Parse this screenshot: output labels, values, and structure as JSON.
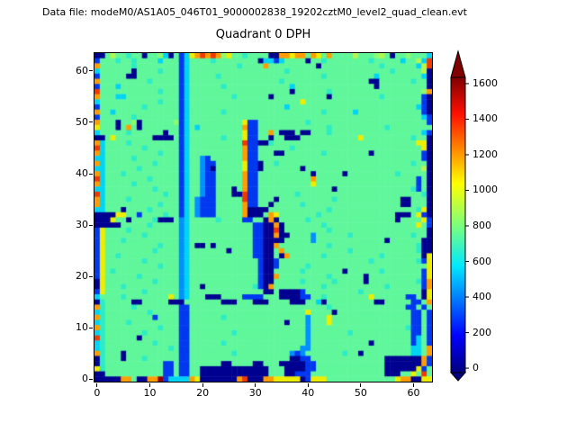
{
  "header": {
    "data_file_label": "Data file: modeM0/AS1A05_046T01_9000002838_19202cztM0_level2_quad_clean.evt"
  },
  "chart_data": {
    "type": "heatmap",
    "title": "Quadrant 0 DPH",
    "grid_size": 64,
    "axis_range": [
      -0.5,
      63.5
    ],
    "x_ticks": [
      0,
      10,
      20,
      30,
      40,
      50,
      60
    ],
    "y_ticks": [
      0,
      10,
      20,
      30,
      40,
      50,
      60
    ],
    "colorbar": {
      "ticks": [
        0,
        200,
        400,
        600,
        800,
        1000,
        1200,
        1400,
        1600
      ],
      "vmin": -25,
      "vmax": 1635,
      "extend": "both",
      "colormap": "jet",
      "gradient_stops": [
        {
          "offset": 0.0,
          "color": "#000080"
        },
        {
          "offset": 0.125,
          "color": "#0000ff"
        },
        {
          "offset": 0.36,
          "color": "#00e8ff"
        },
        {
          "offset": 0.5,
          "color": "#7dff7a"
        },
        {
          "offset": 0.64,
          "color": "#ffff00"
        },
        {
          "offset": 0.875,
          "color": "#ff1000"
        },
        {
          "offset": 1.0,
          "color": "#800000"
        }
      ]
    },
    "palette": {
      "n": {
        "value": 20,
        "color": "#000090"
      },
      "b": {
        "value": 270,
        "color": "#0038f0"
      },
      "B": {
        "value": 430,
        "color": "#0090ff"
      },
      "c": {
        "value": 560,
        "color": "#00d4f5"
      },
      "t": {
        "value": 630,
        "color": "#2cecc6"
      },
      "g": {
        "value": 710,
        "color": "#60f79b"
      },
      "G": {
        "value": 790,
        "color": "#8bfb70"
      },
      "y": {
        "value": 870,
        "color": "#b4f64d"
      },
      "Y": {
        "value": 1010,
        "color": "#eded00"
      },
      "o": {
        "value": 1260,
        "color": "#ff9d00"
      },
      "r": {
        "value": 1500,
        "color": "#f13800"
      },
      "R": {
        "value": 1690,
        "color": "#8f0000"
      }
    },
    "rows": [
      "nngyggtggnggGcngbcYororoGYggtggggnnooYoogoYgoggggygggGygnggGgggc",
      "bgggtggtggggcgggbcggggtggggggggnccbcggggnggtggggggggtgggggcggycr",
      "oggggggtggggggggbcgggggggggtggggogggggggggngggggggggggtgggggdcyr",
      "cggggggnggggtgggbcggggggggggggggggggtgggggggggggggggggggtgggggyn",
      "bgggggnnggggggggbcgggggtgggggggggggggggggggtgggggggggcggggggggcn",
      "ogggggggggtgggggbcgggggggggggggggggtggggggggggggggggnnggggggtggn",
      "bgggcgggggggggggbcggggggtggggggggggggcgggggggggggggggngggggggggn",
      "rgggggggggggtgggbcgggggggggggggggggggnggggggtggggggggggggggggdGo",
      "ogggccggggggggggbcggggggggtggggggnggggggggggngggggggggtgggggggbn",
      "cgggggggggggtgggbcgggggggggggggggggggggYggggggggggggggggggggggbn",
      "bggggggggtggggggbcggggggggggggggggggcggggggggggggggggggggggggcbn",
      "oggcggggggggggggbcggggggtggggggggggggggggggtgggggcggggggggggggbn",
      "bggggggtggggggggbcggggggggggggggggggggggggggggggggggggggggggggcb",
      "ogggnggGnggggggGbcggggggggggYbbgggggggggtggggggggggggggggggggggb",
      "Ygggngogngggggggbcgcggggggggobbgggggggggggggtggggggggggtgggggggg",
      "cgggggtggggggnggbcggggggggggYbbggognnngnngggtgggggggggggggggggcb",
      "nngYgggggggnnnngbcggggggtgggYbbggnggnnngggggggggggYgggggggggtggn",
      "ocggggtgggggggggbcggggggggggrbbnntgggggggggggggggggggggggggggYYn",
      "rcgggggggtggggggbcggggggggggobbggggggtggggggggggggggggggggggggYn",
      "ocggggggggggtgggbcggggggggggobbgggnngggggggtggggggggngggggggggbn",
      "ccgggggtggggggggbcggBbggggggobbgggggggggggggggggggggggggggggggbn",
      "ocgggggggggtggggbcggBbbgggggYbbnggtgggggggggggggggggggggggggtggn",
      "ccggggggtgggggggbcggBbngggggYbbngggggggnggggggggggggggggggggggyn",
      "ocgggtggggggggggbcggBbbgggggobbggggggggggngggggngggggggggtgggggn",
      "rcggggggggtgggggbcggBbbgggggobbggggggggggogggggggggggggggggggbgn",
      "ocgggggtggggggggbcggBbbgggggobbggggggggggYgggggggggggggggggggbgn",
      "ccgggggggggtggggbcggBbbgggngobbggggggggggggggnggggggggggggggtbgn",
      "rcgggggggggggtggbcggBbbgggnnrbbgggggggtgggggggggggggggggggggggtn",
      "ocggggtgggggggggbcgBbbbgggggrbbgggnggggggggggtggggggggggggnngggn",
      "ocggggggggggtgggbcgBbbbgggggobbggngggggtggggggggggggggggggnngggn",
      "ccgggnggggtgggggbcgBbbbgggggonnnngggggggggggtggggggggggggggggtYn",
      "nnnnYYggbggggtggbcgBbbbgggggonnngoYgggggggtggggggggggggggnnngYbn",
      "nnnYggnggggtnnngBcgggggtggggbbggnongggggtggggggggggggggggngggdYb",
      "nnnnngggggtgggggBcggggggggggggbbnnongggggggtggggggggggggggggdYgb",
      "bYggggtgggggggggBcggggggggggggbbnnrnggggggggtggggggggggggggggggn",
      "bYgggggggtggggggBcggggggggggggbbnnonnggggBggggggtgggggggggggtggn",
      "bYgggtggggggggggBcggggggggggggbbnnnngggggBggggggggggggdnggggggnn",
      "bYggggggggggtgggBcgnngngggggggbbnnogggggggggtggggggggggggggggtnn",
      "bYgggggggggtggggBcgggggggnggggbbnngoggggggggggggtggggggggggggtnn",
      "bYggtgggggggggggBcggggggggggggbbnngnoggggggtggggggggggtgggggggnY",
      "bYgggggggtggggggBcgggggggggggggbnnbgggggggggggggggggtggggggggtbY",
      "bYggggggggggtgggBcgggggggggggggbnnbgggggtgggggggggggggggggggggdY",
      "bYgtggggggggggggBcgggggggggggggbnngggggtgggggggnggggggtgggggggbY",
      "bYggggggtgggggggBcgggggggggggggbnnogggggggggtggggggnggggggggggbY",
      "nYgggggggggtggggBcgggggggggggggbnngggggtgggggtgggggngggggggggtbo",
      "nYgggtggggggggggBcggngggggggggtbnogggggggggtgggggggggggtggggggbo",
      "bYgggggggtggggggBcggggggggggggggnngnnnnbggggggggggtgggggggggggnY",
      "cggggtggggggggYgBcgggnnnggggbbbbgggnnnnbbggtggggggggYggggggbbgnY",
      "ntgggggnngggggnnngggggggnnngggnnnggggnnnggcngggggggggnngggggbbgo",
      "otgggggtggggggggbbggggggggggggggggggggggggggtggggggggggggggbbgb",
      "ctggggggggtgggggbbggggggggggggggggggggggYggggnggggggggggggggbbgb",
      "otgggggggggbggggbbggggggtgggggggggggggggBgggYgggggggggggggggbbgb",
      "ctggggtgggggggggbbggggggggggggggggggngggBgggYgggggggggggggggbbgb",
      "otggggggggggtgggbbggggggggggggggggggggggBggggggggggggggggggtbbgb",
      "ctgggggggtggggggbbggggggggtgggggggggggggBgggggggtgggggggggggbbgb",
      "rtggggggngggggggbbggggggggggggggggggggggBgggggggggggggggggggbcgb",
      "ctgggggggggtggggbbggggggtgggggggggggggggBgggggggggggngggggggbcgb",
      "ctggggggggggggtgbbgggggggggggggggggggggBBgggggggggggggggggggccgo",
      "otgggnggggggggggbbggggggggtggggggggggBbBgggggggtggngggggggggccgo",
      "ntgggngggtggggggbbgggggggggggggggggggnnbbggggggggggggggnnnnnnnob",
      "ntgggggggggggbbgbbggggggnnggggnngggnnnnnbbggggggggggggdnnnnnnnob",
      "YtgggggggggggbbgbbggnnnnnnnnnnnnngggnnnnbbgggggggggggggnnnnnnYb",
      "nngggggggggggbbgbbggnnnnnnnnnnnnngggnnbbbggggggggggggggnnnggYgr",
      "nnnnnoognnooRbccccoYnnnnnnnornnnooYYYYYnbYYYgggggggggggggYoonnYY"
    ]
  }
}
